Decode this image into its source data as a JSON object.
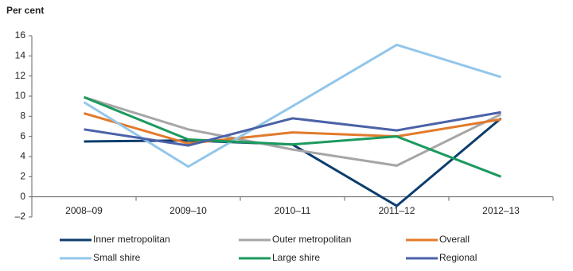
{
  "chart_data": {
    "type": "line",
    "y_label": "Per cent",
    "categories": [
      "2008–09",
      "2009–10",
      "2010–11",
      "2011–12",
      "2012–13"
    ],
    "series": [
      {
        "name": "Inner metropolitan",
        "color": "#0b3d6e",
        "values": [
          5.5,
          5.6,
          5.2,
          -0.9,
          7.8
        ]
      },
      {
        "name": "Outer metropolitan",
        "color": "#a6a6a6",
        "values": [
          9.9,
          6.7,
          4.7,
          3.1,
          8.2
        ]
      },
      {
        "name": "Overall",
        "color": "#e27a2b",
        "values": [
          8.3,
          5.3,
          6.4,
          6.0,
          7.7
        ]
      },
      {
        "name": "Small shire",
        "color": "#93c6ea",
        "values": [
          9.4,
          3.0,
          9.0,
          15.1,
          11.9
        ]
      },
      {
        "name": "Large shire",
        "color": "#1b9a5e",
        "values": [
          9.9,
          5.7,
          5.2,
          6.0,
          2.0
        ]
      },
      {
        "name": "Regional",
        "color": "#4a62a8",
        "values": [
          6.7,
          5.1,
          7.8,
          6.6,
          8.4
        ]
      }
    ],
    "ylim": [
      -2,
      16
    ],
    "yticks": [
      {
        "value": -2,
        "label": "–2"
      },
      0,
      2,
      4,
      6,
      8,
      10,
      12,
      14,
      16
    ],
    "legend": "bottom"
  }
}
